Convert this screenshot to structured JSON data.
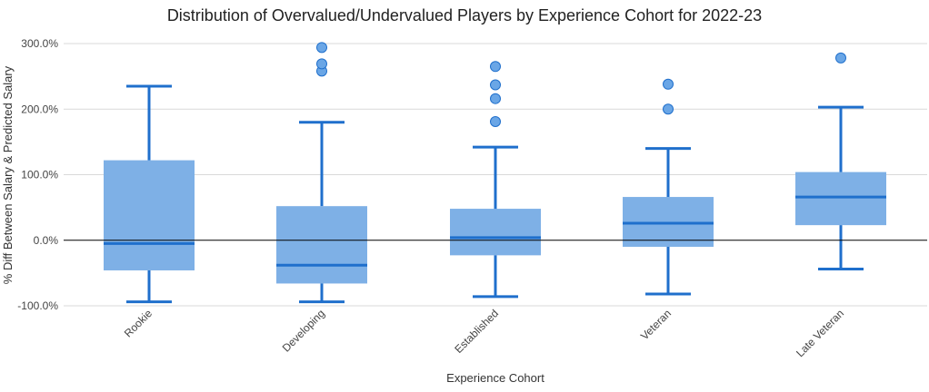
{
  "chart_data": {
    "type": "box",
    "title": "Distribution of Overvalued/Undervalued Players by Experience Cohort for 2022-23",
    "xlabel": "Experience Cohort",
    "ylabel": "% Diff Between Salary & Predicted Salary",
    "ylim": [
      -100,
      300
    ],
    "yticks": [
      -100,
      0,
      100,
      200,
      300
    ],
    "ytick_labels": [
      "-100.0%",
      "0.0%",
      "100.0%",
      "200.0%",
      "300.0%"
    ],
    "grid": true,
    "zero_line": true,
    "categories": [
      "Rookie",
      "Developing",
      "Established",
      "Veteran",
      "Late Veteran"
    ],
    "boxes": [
      {
        "min": -94,
        "q1": -46,
        "median": -5,
        "q3": 122,
        "max": 235,
        "outliers": []
      },
      {
        "min": -94,
        "q1": -66,
        "median": -38,
        "q3": 52,
        "max": 180,
        "outliers": [
          258,
          269,
          294
        ]
      },
      {
        "min": -86,
        "q1": -23,
        "median": 4,
        "q3": 48,
        "max": 142,
        "outliers": [
          181,
          216,
          237,
          265
        ]
      },
      {
        "min": -82,
        "q1": -10,
        "median": 26,
        "q3": 66,
        "max": 140,
        "outliers": [
          200,
          238
        ]
      },
      {
        "min": -44,
        "q1": 23,
        "median": 66,
        "q3": 104,
        "max": 203,
        "outliers": [
          278
        ]
      }
    ],
    "colors": {
      "box_fill": "#7eb0e6",
      "line": "#1f6fcc",
      "outlier_fill": "#6aa6e6",
      "grid": "#d9d9d9",
      "zero": "#000000"
    }
  }
}
